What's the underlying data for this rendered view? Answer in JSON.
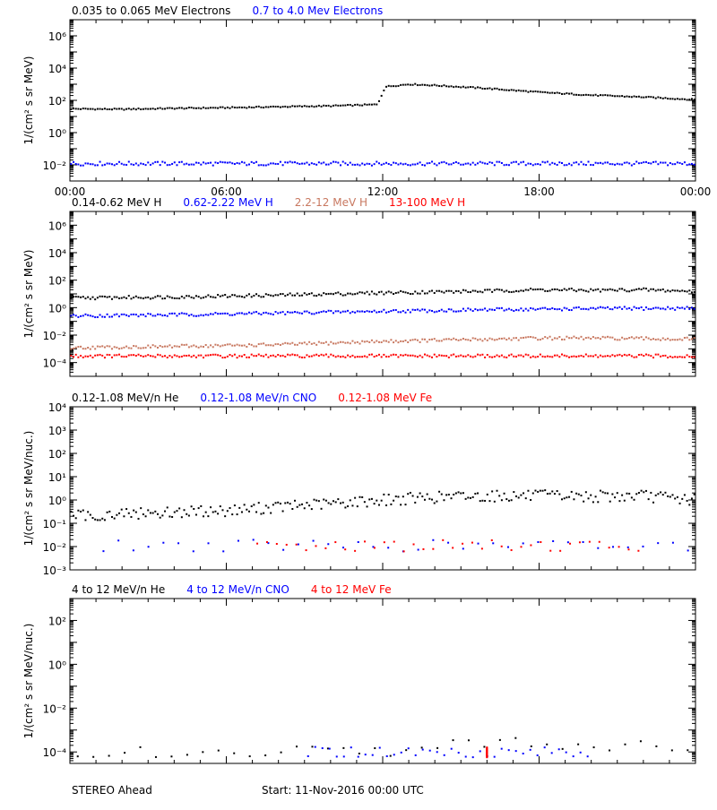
{
  "footer": {
    "spacecraft": "STEREO Ahead",
    "start": "Start: 11-Nov-2016 00:00 UTC"
  },
  "colors": {
    "black": "#000000",
    "blue": "#0000ff",
    "salmon": "#c87860",
    "red": "#ff0000"
  },
  "chart_data": [
    {
      "type": "scatter",
      "ylabel": "1/(cm² s sr MeV)",
      "yscale": "log",
      "ylim": [
        0.001,
        10000000
      ],
      "yticks": [
        {
          "v": 0.01,
          "l": "10⁻²"
        },
        {
          "v": 1,
          "l": "10⁰"
        },
        {
          "v": 100,
          "l": "10²"
        },
        {
          "v": 10000,
          "l": "10⁴"
        },
        {
          "v": 1000000,
          "l": "10⁶"
        }
      ],
      "xlim": [
        0,
        24
      ],
      "xticks": [
        "00:00",
        "06:00",
        "12:00",
        "18:00",
        "00:00"
      ],
      "series": [
        {
          "name": "0.035 to 0.065 MeV Electrons",
          "color": "#000000",
          "points": [
            [
              0,
              30
            ],
            [
              2,
              28
            ],
            [
              4,
              32
            ],
            [
              6,
              35
            ],
            [
              8,
              40
            ],
            [
              10,
              45
            ],
            [
              11.8,
              55
            ],
            [
              12.1,
              700
            ],
            [
              13,
              1000
            ],
            [
              14,
              850
            ],
            [
              16,
              550
            ],
            [
              18,
              320
            ],
            [
              20,
              210
            ],
            [
              22,
              160
            ],
            [
              24,
              110
            ]
          ]
        },
        {
          "name": "0.7 to 4.0 Mev Electrons",
          "color": "#0000ff",
          "points": [
            [
              0,
              0.012
            ],
            [
              6,
              0.012
            ],
            [
              12,
              0.012
            ],
            [
              18,
              0.012
            ],
            [
              24,
              0.012
            ]
          ]
        }
      ]
    },
    {
      "type": "scatter",
      "ylabel": "1/(cm² s sr MeV)",
      "yscale": "log",
      "ylim": [
        1e-05,
        10000000
      ],
      "yticks": [
        {
          "v": 0.0001,
          "l": "10⁻⁴"
        },
        {
          "v": 0.01,
          "l": "10⁻²"
        },
        {
          "v": 1,
          "l": "10⁰"
        },
        {
          "v": 100,
          "l": "10²"
        },
        {
          "v": 10000,
          "l": "10⁴"
        },
        {
          "v": 1000000,
          "l": "10⁶"
        }
      ],
      "xlim": [
        0,
        24
      ],
      "series": [
        {
          "name": "0.14-0.62 MeV H",
          "color": "#000000",
          "points": [
            [
              0,
              5
            ],
            [
              4,
              6
            ],
            [
              8,
              8
            ],
            [
              12,
              12
            ],
            [
              16,
              16
            ],
            [
              18,
              20
            ],
            [
              20,
              18
            ],
            [
              22,
              20
            ],
            [
              24,
              15
            ]
          ]
        },
        {
          "name": "0.62-2.22 MeV H",
          "color": "#0000ff",
          "points": [
            [
              0,
              0.25
            ],
            [
              4,
              0.3
            ],
            [
              8,
              0.4
            ],
            [
              12,
              0.55
            ],
            [
              16,
              0.7
            ],
            [
              20,
              0.85
            ],
            [
              24,
              0.9
            ]
          ]
        },
        {
          "name": "2.2-12 MeV H",
          "color": "#c87860",
          "points": [
            [
              0,
              0.0012
            ],
            [
              4,
              0.0015
            ],
            [
              8,
              0.002
            ],
            [
              12,
              0.0035
            ],
            [
              16,
              0.005
            ],
            [
              18,
              0.006
            ],
            [
              20,
              0.006
            ],
            [
              24,
              0.005
            ]
          ]
        },
        {
          "name": "13-100 MeV H",
          "color": "#ff0000",
          "points": [
            [
              0,
              0.0003
            ],
            [
              6,
              0.0003
            ],
            [
              12,
              0.0003
            ],
            [
              18,
              0.0003
            ],
            [
              24,
              0.0003
            ]
          ]
        }
      ]
    },
    {
      "type": "scatter",
      "ylabel": "1/(cm² s sr MeV/nuc.)",
      "yscale": "log",
      "ylim": [
        0.001,
        10000
      ],
      "yticks": [
        {
          "v": 0.001,
          "l": "10⁻³"
        },
        {
          "v": 0.01,
          "l": "10⁻²"
        },
        {
          "v": 0.1,
          "l": "10⁻¹"
        },
        {
          "v": 1,
          "l": "10⁰"
        },
        {
          "v": 10,
          "l": "10¹"
        },
        {
          "v": 100,
          "l": "10²"
        },
        {
          "v": 1000,
          "l": "10³"
        },
        {
          "v": 10000,
          "l": "10⁴"
        }
      ],
      "xlim": [
        0,
        24
      ],
      "series": [
        {
          "name": "0.12-1.08 MeV/n He",
          "color": "#000000",
          "points": [
            [
              0,
              0.2
            ],
            [
              2,
              0.25
            ],
            [
              4,
              0.3
            ],
            [
              6,
              0.35
            ],
            [
              8,
              0.5
            ],
            [
              10,
              0.7
            ],
            [
              12,
              1.0
            ],
            [
              14,
              1.3
            ],
            [
              16,
              1.5
            ],
            [
              18,
              1.5
            ],
            [
              20,
              1.4
            ],
            [
              22,
              1.5
            ],
            [
              24,
              1.0
            ]
          ]
        },
        {
          "name": "0.12-1.08 MeV/n CNO",
          "color": "#0000ff",
          "points": [
            [
              1,
              0.011
            ],
            [
              6,
              0.011
            ],
            [
              11,
              0.011
            ],
            [
              15,
              0.011
            ],
            [
              19,
              0.011
            ],
            [
              24,
              0.011
            ]
          ]
        },
        {
          "name": "0.12-1.08 MeV Fe",
          "color": "#ff0000",
          "points": [
            [
              7,
              0.011
            ],
            [
              12,
              0.011
            ],
            [
              18,
              0.011
            ],
            [
              22,
              0.011
            ]
          ]
        }
      ]
    },
    {
      "type": "scatter",
      "ylabel": "1/(cm² s sr MeV/nuc.)",
      "yscale": "log",
      "ylim": [
        3e-05,
        1000
      ],
      "yticks": [
        {
          "v": 0.0001,
          "l": "10⁻⁴"
        },
        {
          "v": 0.01,
          "l": "10⁻²"
        },
        {
          "v": 1,
          "l": "10⁰"
        },
        {
          "v": 100,
          "l": "10²"
        }
      ],
      "xlim": [
        0,
        24
      ],
      "series": [
        {
          "name": "4 to 12 MeV/n He",
          "color": "#000000",
          "points": [
            [
              0,
              0.0001
            ],
            [
              4,
              0.0001
            ],
            [
              8,
              0.0001
            ],
            [
              12,
              0.0001
            ],
            [
              14,
              0.0002
            ],
            [
              16,
              0.0003
            ],
            [
              18,
              0.00025
            ],
            [
              20,
              0.0002
            ],
            [
              22,
              0.0002
            ],
            [
              24,
              0.0001
            ]
          ]
        },
        {
          "name": "4 to 12 MeV/n CNO",
          "color": "#0000ff",
          "points": [
            [
              9,
              0.0001
            ],
            [
              16,
              0.0001
            ],
            [
              20,
              0.0001
            ]
          ]
        },
        {
          "name": "4 to 12 MeV Fe",
          "color": "#ff0000",
          "points": [
            [
              16,
              0.0001
            ]
          ]
        }
      ]
    }
  ]
}
